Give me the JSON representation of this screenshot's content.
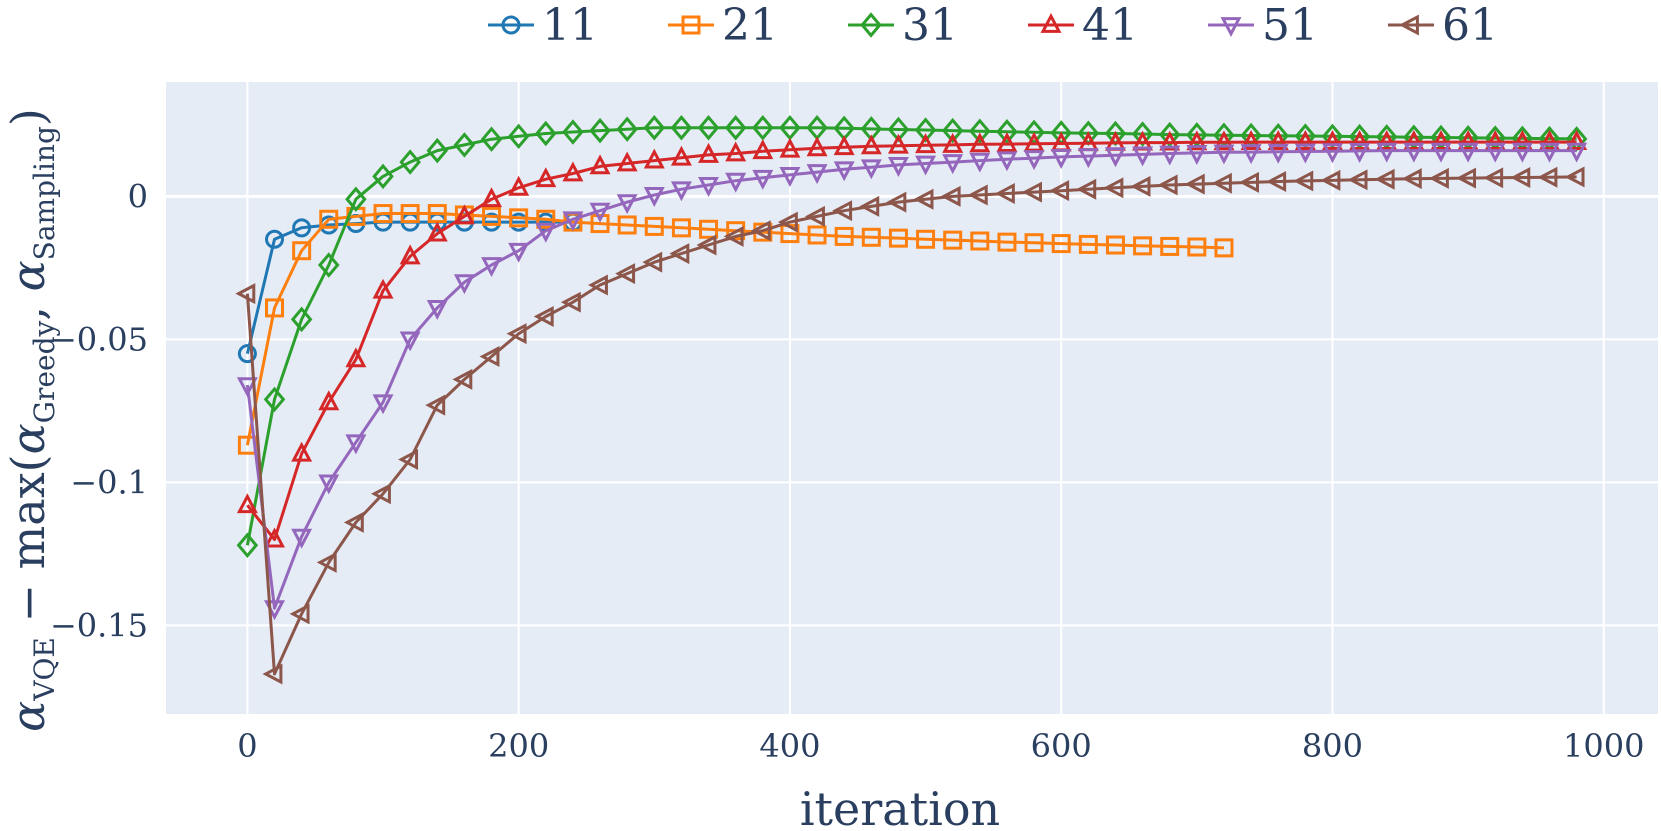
{
  "chart_data": {
    "type": "line",
    "title": "",
    "xlabel": "iteration",
    "ylabel": {
      "alpha": "α",
      "vqe_sub": "VQE",
      "minus": " − max(",
      "greedy_sub": "Greedy",
      "comma": ", ",
      "sampling_sub": "Sampling",
      "close": ")"
    },
    "xlim": [
      -60,
      1040
    ],
    "ylim": [
      -0.181,
      0.04
    ],
    "xticks": [
      {
        "value": 0,
        "label": "0"
      },
      {
        "value": 200,
        "label": "200"
      },
      {
        "value": 400,
        "label": "400"
      },
      {
        "value": 600,
        "label": "600"
      },
      {
        "value": 800,
        "label": "800"
      },
      {
        "value": 1000,
        "label": "1000"
      }
    ],
    "yticks": [
      {
        "value": 0,
        "label": "0"
      },
      {
        "value": -0.05,
        "label": "−0.05"
      },
      {
        "value": -0.1,
        "label": "−0.1"
      },
      {
        "value": -0.15,
        "label": "−0.15"
      }
    ],
    "grid": true,
    "legend_position": "top",
    "colors": {
      "plot_bg": "#e5ecf6",
      "grid": "#ffffff",
      "text": "#2a3f5f"
    },
    "series": [
      {
        "name": "11",
        "color": "#1f77b4",
        "marker": "circle",
        "x": [
          0,
          20,
          40,
          60,
          80,
          100,
          120,
          140,
          160,
          180,
          200,
          220,
          240
        ],
        "y": [
          -0.055,
          -0.015,
          -0.011,
          -0.01,
          -0.0095,
          -0.009,
          -0.009,
          -0.009,
          -0.009,
          -0.009,
          -0.009,
          -0.009,
          -0.009
        ]
      },
      {
        "name": "21",
        "color": "#ff7f0e",
        "marker": "square",
        "x": [
          0,
          20,
          40,
          60,
          80,
          100,
          120,
          140,
          160,
          180,
          200,
          220,
          240,
          260,
          280,
          300,
          320,
          340,
          360,
          380,
          400,
          420,
          440,
          460,
          480,
          500,
          520,
          540,
          560,
          580,
          600,
          620,
          640,
          660,
          680,
          700,
          720
        ],
        "y": [
          -0.087,
          -0.039,
          -0.019,
          -0.008,
          -0.007,
          -0.006,
          -0.006,
          -0.006,
          -0.0065,
          -0.007,
          -0.0075,
          -0.008,
          -0.009,
          -0.0095,
          -0.01,
          -0.0105,
          -0.011,
          -0.0115,
          -0.012,
          -0.0125,
          -0.013,
          -0.0135,
          -0.014,
          -0.0143,
          -0.0146,
          -0.015,
          -0.0153,
          -0.0156,
          -0.016,
          -0.0162,
          -0.0165,
          -0.0168,
          -0.017,
          -0.0173,
          -0.0175,
          -0.0177,
          -0.018
        ]
      },
      {
        "name": "31",
        "color": "#2ca02c",
        "marker": "diamond",
        "x": [
          0,
          20,
          40,
          60,
          80,
          100,
          120,
          140,
          160,
          180,
          200,
          220,
          240,
          260,
          280,
          300,
          320,
          340,
          360,
          380,
          400,
          420,
          440,
          460,
          480,
          500,
          520,
          540,
          560,
          580,
          600,
          620,
          640,
          660,
          680,
          700,
          720,
          740,
          760,
          780,
          800,
          820,
          840,
          860,
          880,
          900,
          920,
          940,
          960,
          980
        ],
        "y": [
          -0.122,
          -0.071,
          -0.043,
          -0.024,
          -0.001,
          0.007,
          0.012,
          0.016,
          0.018,
          0.02,
          0.021,
          0.022,
          0.0225,
          0.023,
          0.0235,
          0.024,
          0.024,
          0.024,
          0.024,
          0.024,
          0.024,
          0.024,
          0.0238,
          0.0236,
          0.0234,
          0.0232,
          0.023,
          0.0228,
          0.0226,
          0.0224,
          0.0222,
          0.0221,
          0.022,
          0.0218,
          0.0216,
          0.0215,
          0.0214,
          0.0213,
          0.0212,
          0.0211,
          0.021,
          0.0209,
          0.0208,
          0.0207,
          0.0206,
          0.0205,
          0.0204,
          0.0203,
          0.0202,
          0.0201
        ]
      },
      {
        "name": "41",
        "color": "#d62728",
        "marker": "triangle-up",
        "x": [
          0,
          20,
          40,
          60,
          80,
          100,
          120,
          140,
          160,
          180,
          200,
          220,
          240,
          260,
          280,
          300,
          320,
          340,
          360,
          380,
          400,
          420,
          440,
          460,
          480,
          500,
          520,
          540,
          560,
          580,
          600,
          620,
          640,
          660,
          680,
          700,
          720,
          740,
          760,
          780,
          800,
          820,
          840,
          860,
          880,
          900,
          920,
          940,
          960,
          980
        ],
        "y": [
          -0.108,
          -0.12,
          -0.09,
          -0.072,
          -0.057,
          -0.033,
          -0.021,
          -0.013,
          -0.007,
          -0.001,
          0.003,
          0.006,
          0.008,
          0.0105,
          0.0115,
          0.0125,
          0.0135,
          0.0145,
          0.015,
          0.0158,
          0.0163,
          0.0168,
          0.0172,
          0.0175,
          0.0177,
          0.0179,
          0.018,
          0.0182,
          0.0183,
          0.0184,
          0.0185,
          0.0186,
          0.0187,
          0.0188,
          0.0188,
          0.0189,
          0.0189,
          0.019,
          0.019,
          0.019,
          0.019,
          0.019,
          0.019,
          0.019,
          0.019,
          0.019,
          0.019,
          0.019,
          0.019,
          0.019
        ]
      },
      {
        "name": "51",
        "color": "#9467bd",
        "marker": "triangle-down",
        "x": [
          0,
          20,
          40,
          60,
          80,
          100,
          120,
          140,
          160,
          180,
          200,
          220,
          240,
          260,
          280,
          300,
          320,
          340,
          360,
          380,
          400,
          420,
          440,
          460,
          480,
          500,
          520,
          540,
          560,
          580,
          600,
          620,
          640,
          660,
          680,
          700,
          720,
          740,
          760,
          780,
          800,
          820,
          840,
          860,
          880,
          900,
          920,
          940,
          960,
          980
        ],
        "y": [
          -0.066,
          -0.144,
          -0.119,
          -0.1,
          -0.086,
          -0.072,
          -0.05,
          -0.039,
          -0.03,
          -0.024,
          -0.019,
          -0.012,
          -0.008,
          -0.005,
          -0.002,
          0.0005,
          0.0025,
          0.004,
          0.0055,
          0.0065,
          0.0075,
          0.0085,
          0.0095,
          0.0102,
          0.011,
          0.0115,
          0.012,
          0.0125,
          0.013,
          0.0134,
          0.0138,
          0.0141,
          0.0144,
          0.0147,
          0.015,
          0.0152,
          0.0154,
          0.0155,
          0.0156,
          0.0157,
          0.0158,
          0.0159,
          0.016,
          0.016,
          0.016,
          0.016,
          0.016,
          0.016,
          0.016,
          0.016
        ]
      },
      {
        "name": "61",
        "color": "#8c564b",
        "marker": "triangle-left",
        "x": [
          0,
          20,
          40,
          60,
          80,
          100,
          120,
          140,
          160,
          180,
          200,
          220,
          240,
          260,
          280,
          300,
          320,
          340,
          360,
          380,
          400,
          420,
          440,
          460,
          480,
          500,
          520,
          540,
          560,
          580,
          600,
          620,
          640,
          660,
          680,
          700,
          720,
          740,
          760,
          780,
          800,
          820,
          840,
          860,
          880,
          900,
          920,
          940,
          960,
          980
        ],
        "y": [
          -0.034,
          -0.167,
          -0.146,
          -0.128,
          -0.114,
          -0.104,
          -0.092,
          -0.073,
          -0.064,
          -0.056,
          -0.048,
          -0.042,
          -0.037,
          -0.031,
          -0.027,
          -0.023,
          -0.02,
          -0.017,
          -0.014,
          -0.012,
          -0.009,
          -0.007,
          -0.005,
          -0.0035,
          -0.002,
          -0.001,
          0.0,
          0.0005,
          0.001,
          0.0015,
          0.002,
          0.0025,
          0.003,
          0.0035,
          0.004,
          0.0043,
          0.0046,
          0.0049,
          0.0052,
          0.0054,
          0.0056,
          0.0058,
          0.006,
          0.0062,
          0.0063,
          0.0064,
          0.0065,
          0.0066,
          0.0067,
          0.0068
        ]
      }
    ]
  }
}
